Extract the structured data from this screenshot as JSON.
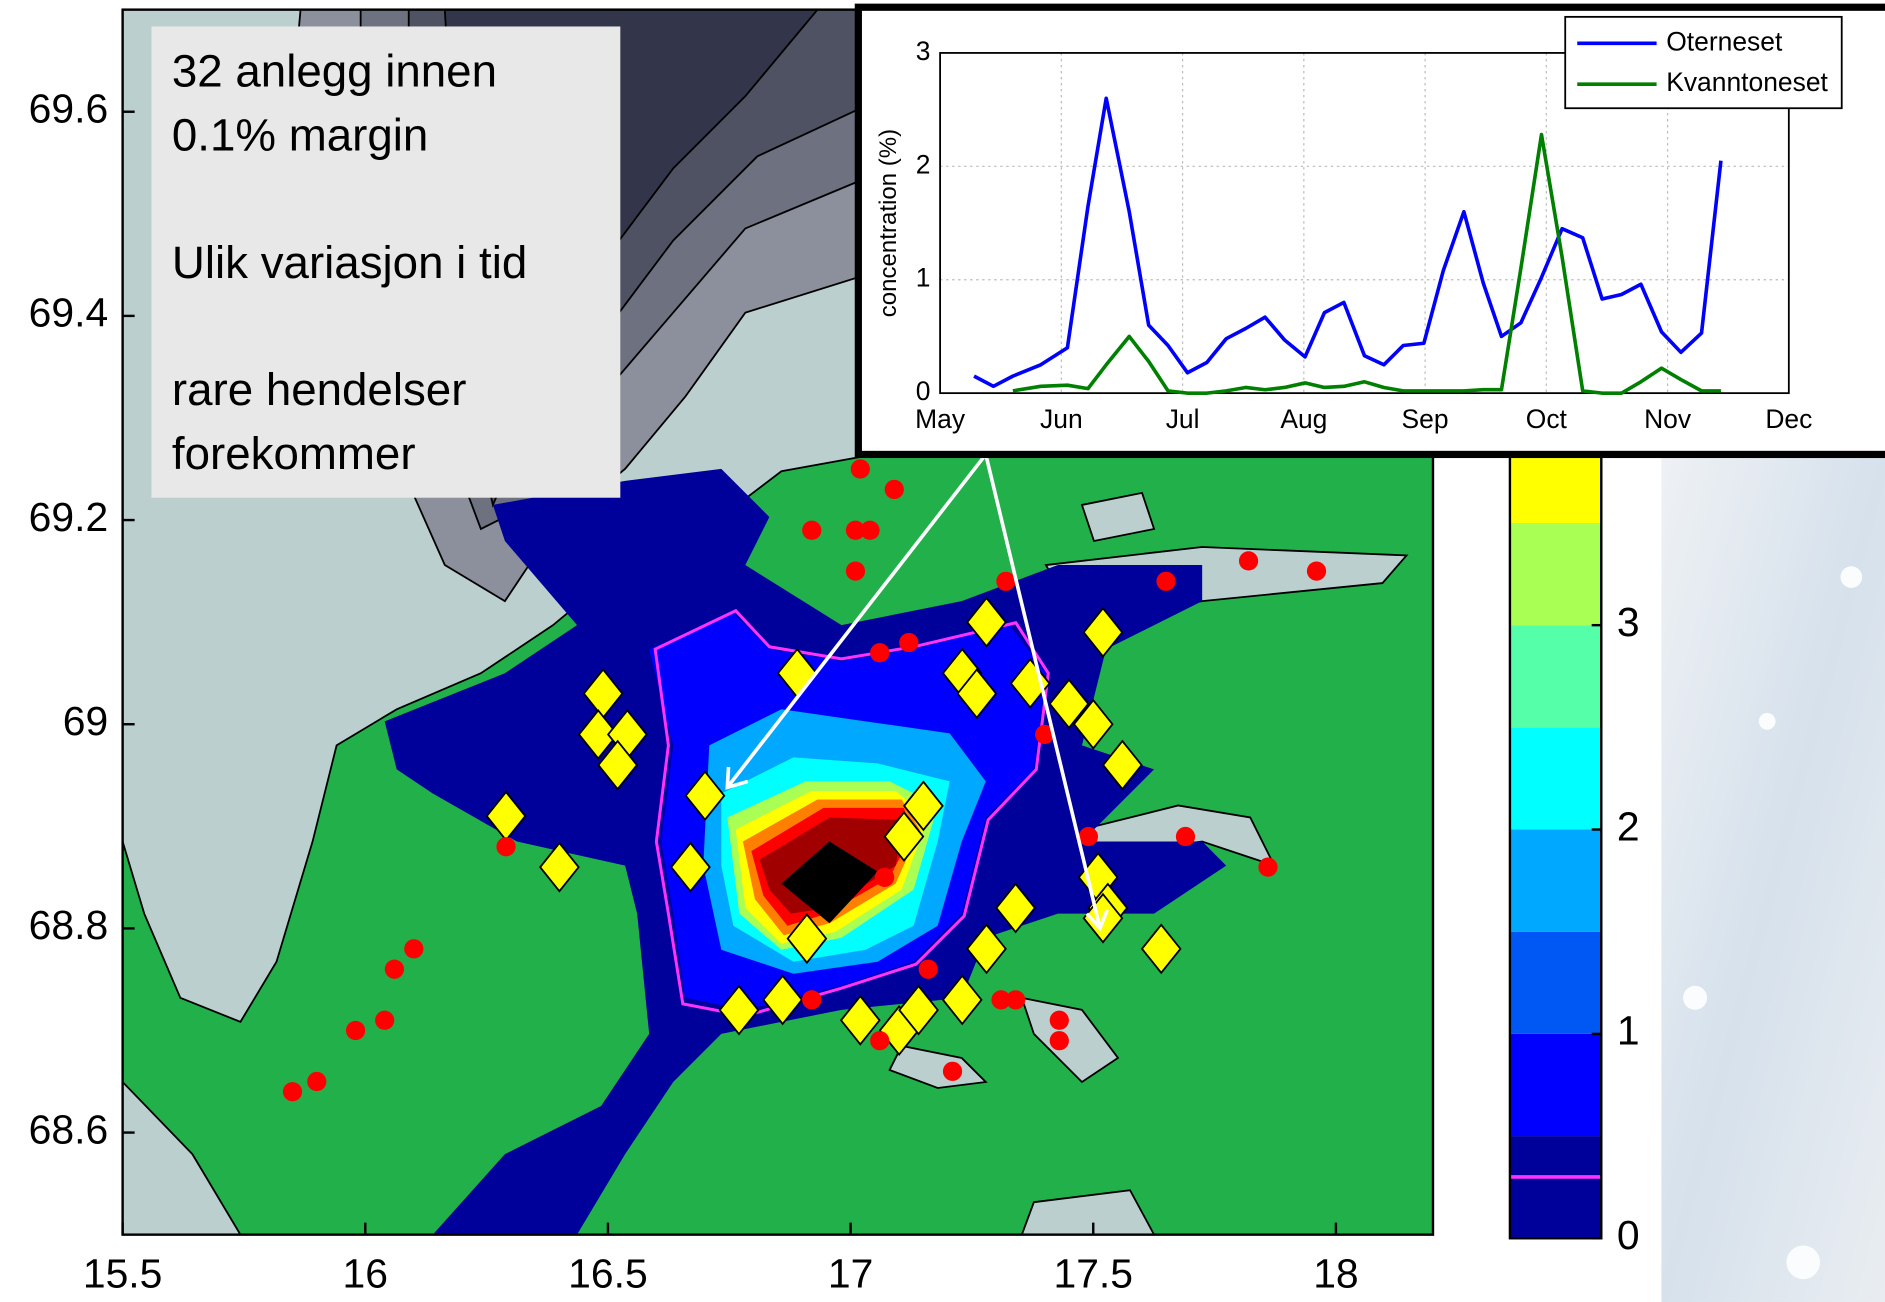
{
  "chart_data": [
    {
      "type": "scatter",
      "annotation": [
        [
          "32 anlegg innen",
          "0.1% margin"
        ],
        [
          "Ulik variasjon i tid"
        ],
        [
          "rare hendelser",
          "forekommer"
        ]
      ],
      "xlim": [
        15.5,
        18.2
      ],
      "ylim": [
        68.5,
        69.7
      ],
      "xticks": [
        15.5,
        16,
        16.5,
        17,
        17.5,
        18
      ],
      "yticks": [
        68.6,
        68.8,
        69,
        69.2,
        69.4,
        69.6
      ],
      "series": [
        {
          "marker": "diamond",
          "color": "#ffff00",
          "x": [
            16.49,
            16.48,
            16.54,
            16.52,
            16.7,
            16.89,
            16.67,
            16.29,
            16.4,
            17.15,
            17.11,
            16.91,
            16.77,
            16.86,
            17.02,
            17.1,
            17.14,
            17.23,
            17.28,
            17.34,
            17.51,
            17.53,
            17.52,
            17.64,
            17.28,
            17.52,
            17.23,
            17.26,
            17.37,
            17.45,
            17.5,
            17.56
          ],
          "y": [
            69.03,
            68.99,
            68.99,
            68.96,
            68.93,
            69.05,
            68.86,
            68.91,
            68.86,
            68.92,
            68.89,
            68.79,
            68.72,
            68.73,
            68.71,
            68.7,
            68.72,
            68.73,
            68.78,
            68.82,
            68.85,
            68.82,
            68.81,
            68.78,
            69.1,
            69.09,
            69.05,
            69.03,
            69.04,
            69.02,
            69.0,
            68.96
          ]
        },
        {
          "marker": "circle",
          "color": "#ff0000",
          "x": [
            16.29,
            16.06,
            16.1,
            16.04,
            15.98,
            15.9,
            15.85,
            17.02,
            17.09,
            16.92,
            17.01,
            17.04,
            17.01,
            17.06,
            17.12,
            17.32,
            17.65,
            17.82,
            17.96,
            17.4,
            17.49,
            17.69,
            17.86,
            17.07,
            17.16,
            16.92,
            17.06,
            17.21,
            17.31,
            17.34,
            17.43,
            17.43
          ],
          "y": [
            68.88,
            68.76,
            68.78,
            68.71,
            68.7,
            68.65,
            68.64,
            69.25,
            69.23,
            69.19,
            69.19,
            69.19,
            69.15,
            69.07,
            69.08,
            69.14,
            69.14,
            69.16,
            69.15,
            68.99,
            68.89,
            68.89,
            68.86,
            68.85,
            68.76,
            68.73,
            68.69,
            68.66,
            68.73,
            68.73,
            68.71,
            68.69
          ]
        }
      ]
    },
    {
      "type": "colorbar",
      "ylim": [
        0,
        4
      ],
      "yticks": [
        0,
        1,
        2,
        3
      ],
      "levels": [
        0,
        0.5,
        1,
        1.5,
        2,
        2.5,
        3,
        3.5,
        4
      ],
      "colors": [
        "#00009a",
        "#0000ff",
        "#0058f4",
        "#00a8ff",
        "#00ffff",
        "#55ffaa",
        "#aaff55",
        "#ffff00"
      ],
      "contour_level": 0.3,
      "contour_color": "#ff33ff"
    },
    {
      "type": "line",
      "ylabel": "concentration (%)",
      "xlim": [
        0,
        7
      ],
      "ylim": [
        0,
        3
      ],
      "xticks": [
        {
          "value": 0,
          "label": "May"
        },
        {
          "value": 1,
          "label": "Jun"
        },
        {
          "value": 2,
          "label": "Jul"
        },
        {
          "value": 3,
          "label": "Aug"
        },
        {
          "value": 4,
          "label": "Sep"
        },
        {
          "value": 5,
          "label": "Oct"
        },
        {
          "value": 6,
          "label": "Nov"
        },
        {
          "value": 7,
          "label": "Dec"
        }
      ],
      "yticks": [
        0,
        1,
        2,
        3
      ],
      "grid": true,
      "legend": "upper right",
      "x": [
        0.28,
        0.44,
        0.6,
        0.83,
        1.05,
        1.22,
        1.37,
        1.56,
        1.72,
        1.88,
        2.04,
        2.2,
        2.36,
        2.52,
        2.68,
        2.84,
        3.01,
        3.17,
        3.33,
        3.5,
        3.66,
        3.82,
        3.99,
        4.15,
        4.32,
        4.48,
        4.63,
        4.79,
        4.96,
        5.13,
        5.3,
        5.46,
        5.62,
        5.78,
        5.95,
        6.11,
        6.28,
        6.44
      ],
      "series": [
        {
          "name": "Oterneset",
          "color": "#0000ff",
          "values": [
            0.15,
            0.06,
            0.15,
            0.25,
            0.4,
            1.65,
            2.6,
            1.6,
            0.6,
            0.42,
            0.18,
            0.27,
            0.48,
            0.57,
            0.67,
            0.47,
            0.32,
            0.71,
            0.8,
            0.33,
            0.25,
            0.42,
            0.44,
            1.08,
            1.6,
            0.97,
            0.5,
            0.62,
            1.02,
            1.45,
            1.37,
            0.83,
            0.87,
            0.96,
            0.54,
            0.36,
            0.53,
            2.05
          ]
        },
        {
          "name": "Kvanntoneset",
          "color": "#008000",
          "values": [
            null,
            null,
            0.02,
            0.06,
            0.07,
            0.04,
            0.25,
            0.5,
            0.28,
            0.02,
            0.0,
            0.0,
            0.02,
            0.05,
            0.03,
            0.05,
            0.09,
            0.05,
            0.06,
            0.1,
            0.05,
            0.02,
            0.02,
            0.02,
            0.02,
            0.03,
            0.03,
            1.1,
            2.28,
            1.2,
            0.02,
            0.0,
            0.0,
            0.1,
            0.22,
            0.12,
            0.02,
            0.02
          ]
        }
      ]
    }
  ]
}
